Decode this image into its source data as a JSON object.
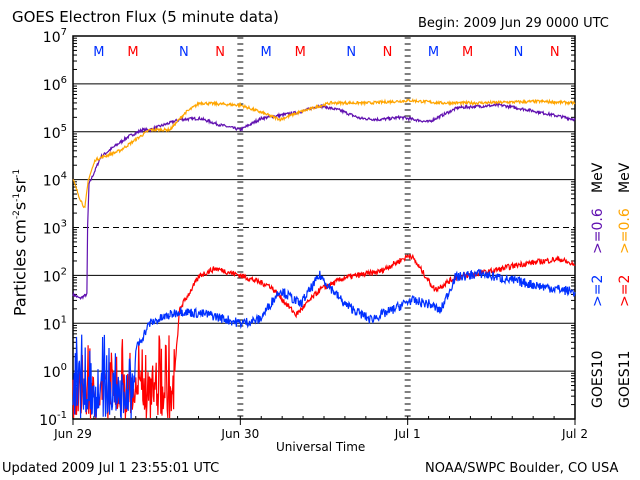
{
  "header": {
    "title": "GOES Electron Flux (5 minute data)",
    "begin": "Begin: 2009 Jun 29 0000 UTC"
  },
  "footer": {
    "updated": "Updated 2009 Jul  1 23:55:01 UTC",
    "credit": "NOAA/SWPC Boulder, CO USA"
  },
  "colors": {
    "goes10_06": "#6010b0",
    "goes11_06": "#ffa500",
    "goes10_2": "#0030ff",
    "goes11_2": "#ff0000"
  },
  "chart_data": {
    "type": "line",
    "title": "GOES Electron Flux (5 minute data)",
    "xlabel": "Universal Time",
    "ylabel": "Particles cm-2s-1sr-1",
    "ylabel_parts": {
      "base": "Particles cm",
      "e1": "-2",
      "s": "s",
      "e2": "-1",
      "sr": "sr",
      "e3": "-1"
    },
    "yscale": "log",
    "ylim": [
      0.1,
      10000000
    ],
    "yticks": [
      {
        "b": "10",
        "e": "-1",
        "v": 0.1
      },
      {
        "b": "10",
        "e": "0",
        "v": 1
      },
      {
        "b": "10",
        "e": "1",
        "v": 10
      },
      {
        "b": "10",
        "e": "2",
        "v": 100
      },
      {
        "b": "10",
        "e": "3",
        "v": 1000
      },
      {
        "b": "10",
        "e": "4",
        "v": 10000
      },
      {
        "b": "10",
        "e": "5",
        "v": 100000
      },
      {
        "b": "10",
        "e": "6",
        "v": 1000000
      },
      {
        "b": "10",
        "e": "7",
        "v": 10000000
      }
    ],
    "x_unit": "hours since 2009 Jun 29 0000 UTC",
    "xlim": [
      0,
      72
    ],
    "xticks": [
      {
        "label": "Jun 29",
        "h": 0
      },
      {
        "label": "Jun 30",
        "h": 24
      },
      {
        "label": "Jul 1",
        "h": 48
      },
      {
        "label": "Jul 2",
        "h": 72
      }
    ],
    "grid": "horizontal at each decade (10^3 dashed)",
    "markers": [
      {
        "label": "M",
        "h": 3.7,
        "color": "#0030ff"
      },
      {
        "label": "M",
        "h": 8.6,
        "color": "#ff0000"
      },
      {
        "label": "N",
        "h": 15.9,
        "color": "#0030ff"
      },
      {
        "label": "N",
        "h": 21.1,
        "color": "#ff0000"
      },
      {
        "label": "M",
        "h": 27.7,
        "color": "#0030ff"
      },
      {
        "label": "M",
        "h": 32.6,
        "color": "#ff0000"
      },
      {
        "label": "N",
        "h": 39.9,
        "color": "#0030ff"
      },
      {
        "label": "N",
        "h": 45.1,
        "color": "#ff0000"
      },
      {
        "label": "M",
        "h": 51.7,
        "color": "#0030ff"
      },
      {
        "label": "M",
        "h": 56.6,
        "color": "#ff0000"
      },
      {
        "label": "N",
        "h": 63.9,
        "color": "#0030ff"
      },
      {
        "label": "N",
        "h": 69.1,
        "color": "#ff0000"
      }
    ],
    "legend": [
      {
        "sat": "GOES10",
        "e2": ">=2",
        "e06": ">=0.6",
        "unit": "MeV"
      },
      {
        "sat": "GOES11",
        "e2": ">=2",
        "e06": ">=0.6",
        "unit": "MeV"
      }
    ],
    "series": [
      {
        "name": "GOES10 >=0.6 MeV",
        "color": "#6010b0",
        "noise": 0.03,
        "points": [
          [
            0,
            40
          ],
          [
            1,
            33
          ],
          [
            2,
            40
          ],
          [
            2.1,
            1000
          ],
          [
            2.3,
            8000
          ],
          [
            4,
            30000
          ],
          [
            6,
            50000
          ],
          [
            8,
            80000
          ],
          [
            10,
            110000
          ],
          [
            11,
            110000
          ],
          [
            15.3,
            180000
          ],
          [
            18.2,
            190000
          ],
          [
            21,
            140000
          ],
          [
            24,
            110000
          ],
          [
            27,
            190000
          ],
          [
            29.7,
            220000
          ],
          [
            32.6,
            260000
          ],
          [
            35.4,
            350000
          ],
          [
            38.3,
            280000
          ],
          [
            41.2,
            190000
          ],
          [
            44,
            180000
          ],
          [
            47,
            200000
          ],
          [
            51,
            160000
          ],
          [
            55.2,
            320000
          ],
          [
            61.3,
            360000
          ],
          [
            65.6,
            280000
          ],
          [
            72,
            180000
          ]
        ]
      },
      {
        "name": "GOES11 >=0.6 MeV",
        "color": "#ffa500",
        "noise": 0.03,
        "points": [
          [
            0,
            10000
          ],
          [
            1,
            4000
          ],
          [
            1.7,
            2500
          ],
          [
            2.2,
            10000
          ],
          [
            3.2,
            26000
          ],
          [
            6.7,
            40000
          ],
          [
            11,
            110000
          ],
          [
            13.9,
            110000
          ],
          [
            16.1,
            250000
          ],
          [
            18.2,
            400000
          ],
          [
            24,
            360000
          ],
          [
            26.8,
            260000
          ],
          [
            29.7,
            180000
          ],
          [
            32.6,
            260000
          ],
          [
            36.9,
            400000
          ],
          [
            42.6,
            400000
          ],
          [
            48.4,
            450000
          ],
          [
            52.7,
            400000
          ],
          [
            58.4,
            400000
          ],
          [
            67,
            430000
          ],
          [
            72,
            400000
          ]
        ]
      },
      {
        "name": "GOES11 >=2 MeV",
        "color": "#ff0000",
        "noise": 0.06,
        "noisy_until": 14.6,
        "points": [
          [
            0,
            2
          ],
          [
            14.6,
            1
          ],
          [
            15.3,
            20
          ],
          [
            18.2,
            100
          ],
          [
            20.4,
            140
          ],
          [
            24,
            100
          ],
          [
            28.3,
            60
          ],
          [
            32,
            15
          ],
          [
            35.4,
            50
          ],
          [
            39,
            90
          ],
          [
            44,
            120
          ],
          [
            48.4,
            270
          ],
          [
            50.5,
            100
          ],
          [
            51.9,
            50
          ],
          [
            54.8,
            90
          ],
          [
            59.8,
            120
          ],
          [
            64.1,
            170
          ],
          [
            69.8,
            220
          ],
          [
            72,
            160
          ]
        ]
      },
      {
        "name": "GOES10 >=2 MeV",
        "color": "#0030ff",
        "noise": 0.1,
        "noisy_until": 9,
        "points": [
          [
            0,
            1
          ],
          [
            8,
            1.5
          ],
          [
            11,
            10
          ],
          [
            15.3,
            18
          ],
          [
            19.6,
            15
          ],
          [
            24,
            10
          ],
          [
            26.8,
            12
          ],
          [
            29.7,
            50
          ],
          [
            32.6,
            25
          ],
          [
            35.4,
            100
          ],
          [
            39,
            25
          ],
          [
            42.6,
            12
          ],
          [
            45.5,
            18
          ],
          [
            48.4,
            30
          ],
          [
            51.2,
            25
          ],
          [
            52.7,
            18
          ],
          [
            54.8,
            90
          ],
          [
            58.4,
            110
          ],
          [
            62.7,
            80
          ],
          [
            67,
            60
          ],
          [
            72,
            45
          ]
        ]
      }
    ]
  }
}
